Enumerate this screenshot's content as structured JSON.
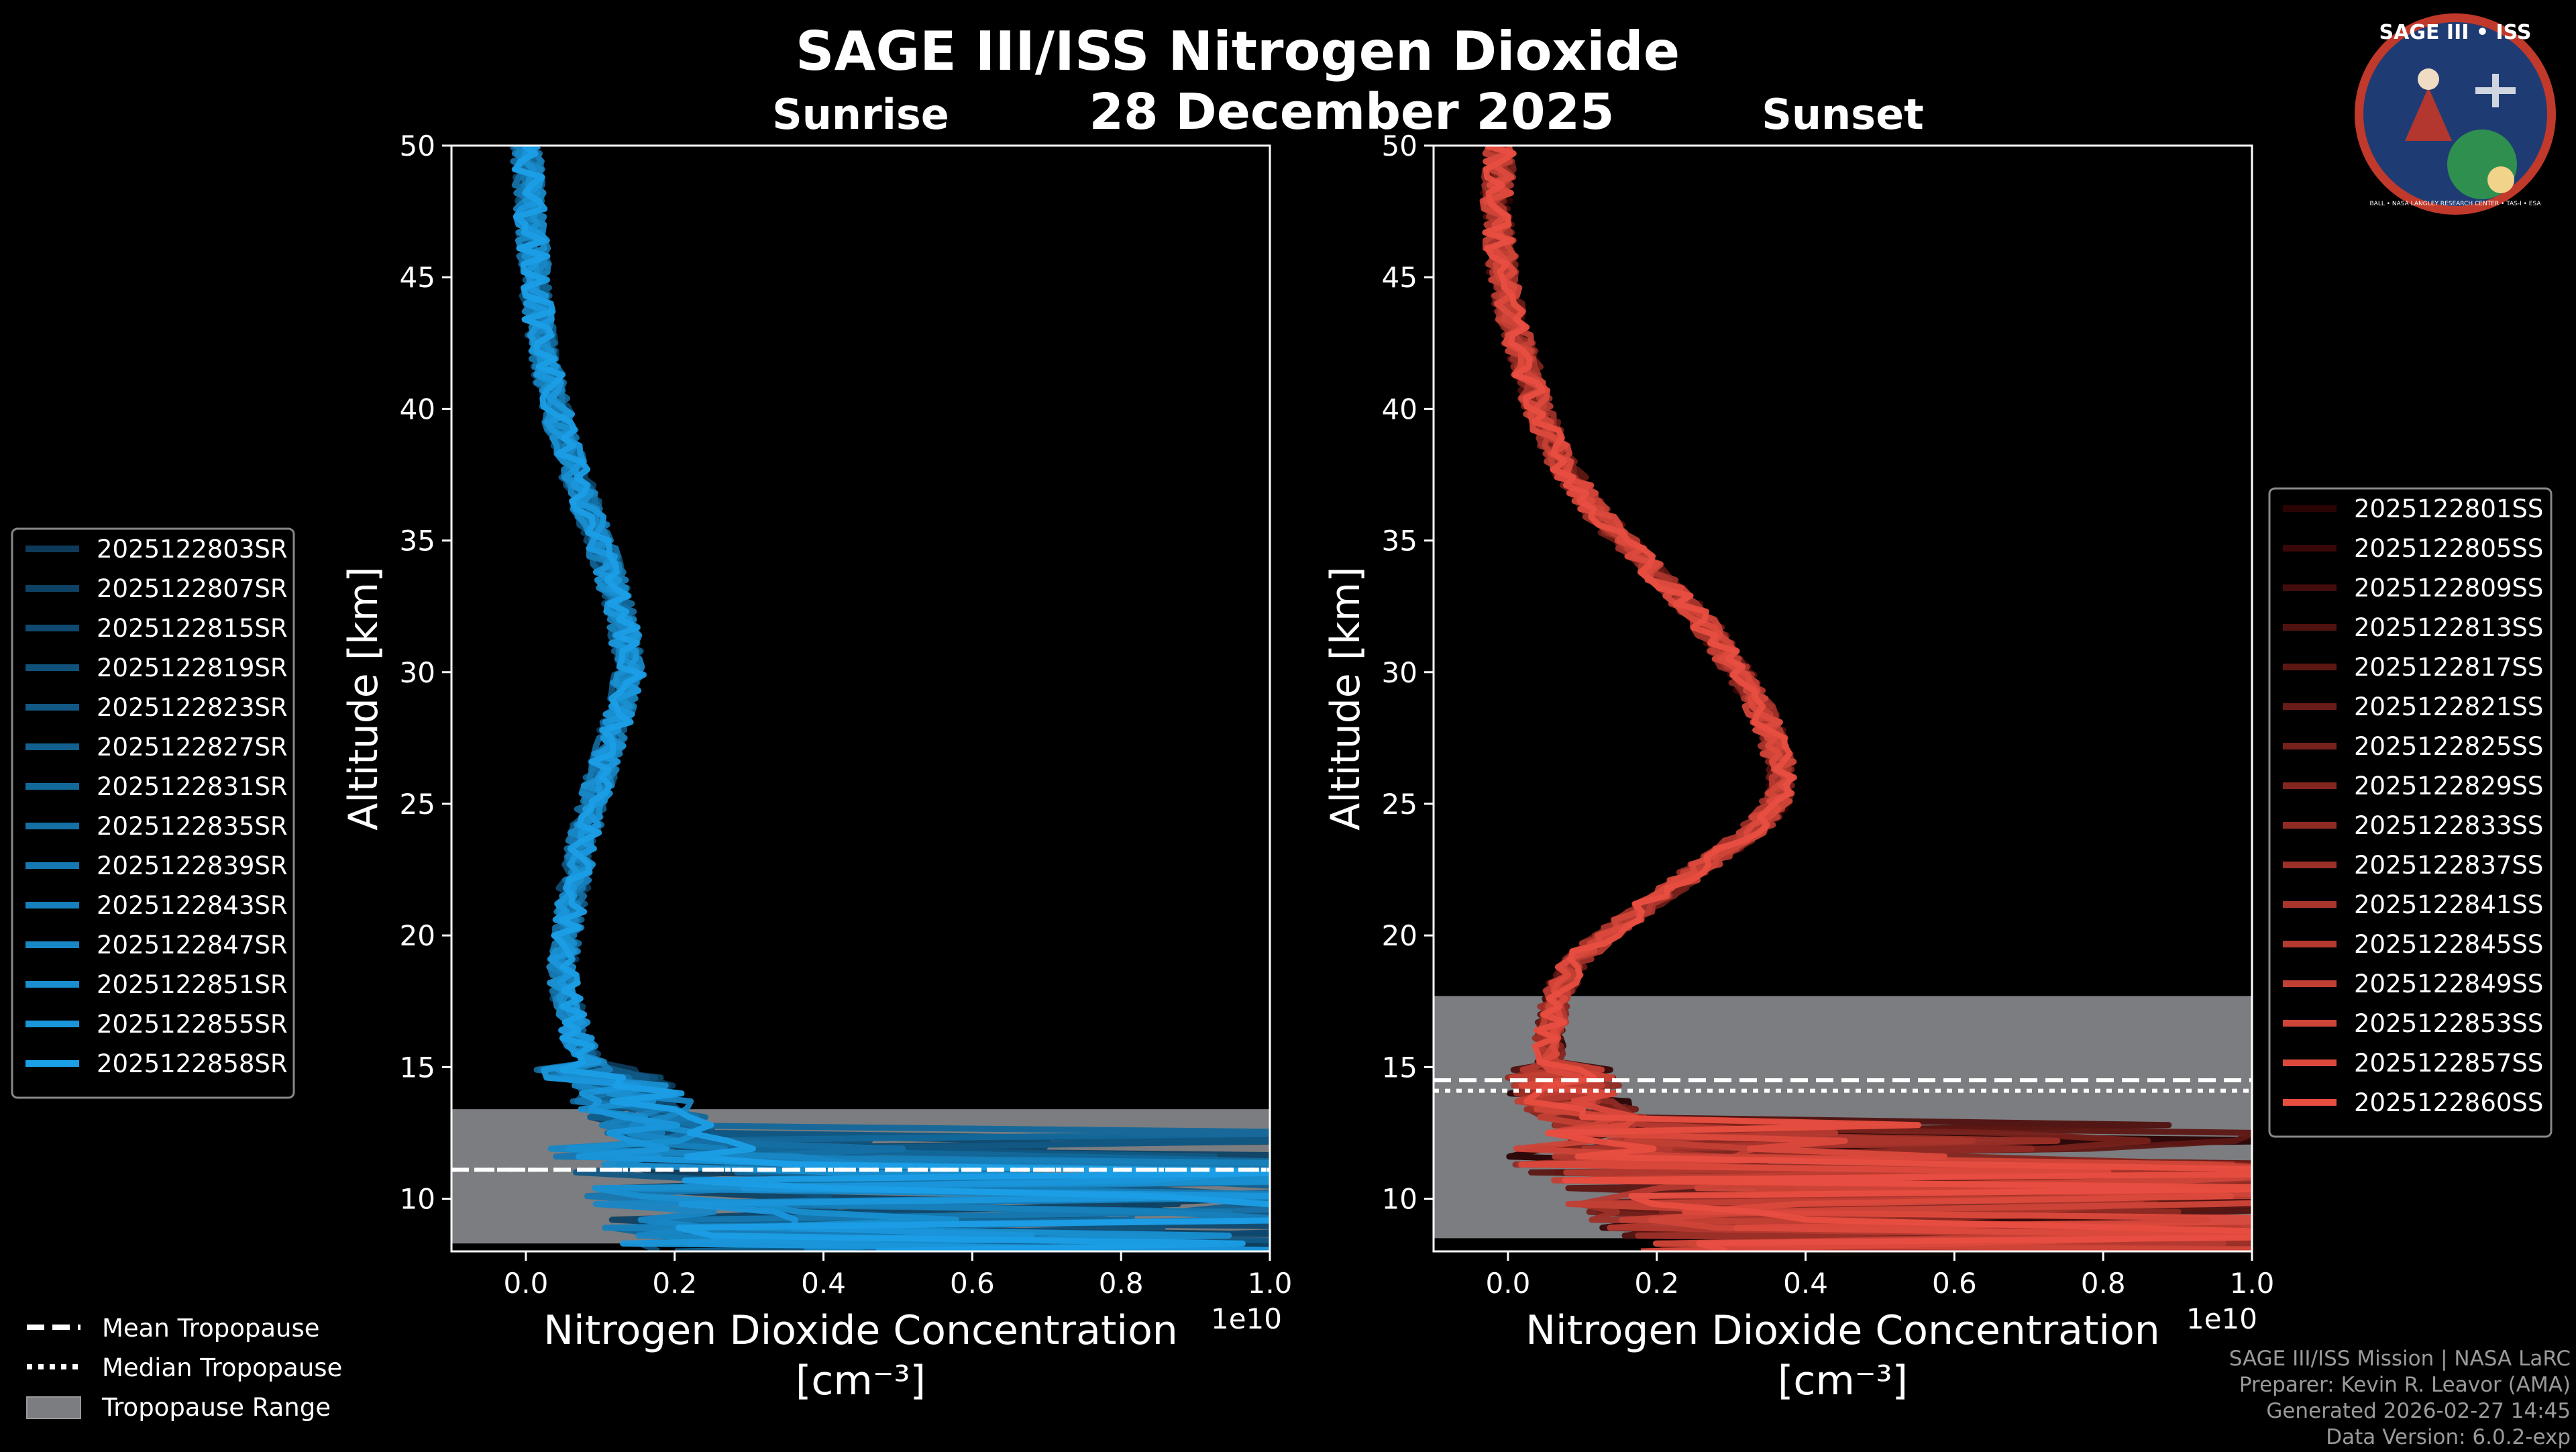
{
  "header": {
    "title": "SAGE III/ISS Nitrogen Dioxide",
    "date": "28 December 2025"
  },
  "logo": {
    "name": "SAGE III • ISS",
    "ring_text": "BALL • NASA LANGLEY RESEARCH CENTER • TAS-I • ESA"
  },
  "credits": {
    "line1": "SAGE III/ISS Mission | NASA LaRC",
    "line2": "Preparer: Kevin R. Leavor (AMA)",
    "line3": "Generated 2026-02-27 14:45",
    "line4": "Data Version: 6.0.2-exp"
  },
  "tropo_legend": {
    "mean": "Mean Tropopause",
    "median": "Median Tropopause",
    "range": "Tropopause Range"
  },
  "chart_data": [
    {
      "type": "line",
      "panel": "Sunrise",
      "title": "Sunrise",
      "xlabel": "Nitrogen Dioxide Concentration",
      "xunit": "[cm⁻³]",
      "xscale_label": "1e10",
      "ylabel": "Altitude [km]",
      "xlim": [
        -0.1,
        1.0
      ],
      "ylim": [
        8,
        50
      ],
      "xticks": [
        "0.0",
        "0.2",
        "0.4",
        "0.6",
        "0.8",
        "1.0"
      ],
      "yticks": [
        "10",
        "15",
        "20",
        "25",
        "30",
        "35",
        "40",
        "45",
        "50"
      ],
      "series_color_range": [
        "#0d3a59",
        "#1b9ee6"
      ],
      "series_names": [
        "2025122803SR",
        "2025122807SR",
        "2025122815SR",
        "2025122819SR",
        "2025122823SR",
        "2025122827SR",
        "2025122831SR",
        "2025122835SR",
        "2025122839SR",
        "2025122843SR",
        "2025122847SR",
        "2025122851SR",
        "2025122855SR",
        "2025122858SR"
      ],
      "mean_profile": {
        "alt": [
          8,
          9,
          10,
          11,
          12,
          13,
          14,
          15,
          16,
          17,
          18,
          19,
          20,
          22,
          24,
          26,
          28,
          30,
          32,
          34,
          36,
          38,
          40,
          42,
          44,
          46,
          48,
          50
        ],
        "val": [
          0.3,
          0.28,
          0.26,
          0.24,
          0.2,
          0.17,
          0.13,
          0.09,
          0.07,
          0.06,
          0.05,
          0.05,
          0.055,
          0.065,
          0.08,
          0.1,
          0.12,
          0.14,
          0.13,
          0.11,
          0.085,
          0.06,
          0.04,
          0.025,
          0.015,
          0.01,
          0.005,
          0.0
        ]
      },
      "tropopause": {
        "mean_km": 11.1,
        "median_km": 11.1,
        "range_km": [
          8.3,
          13.4
        ]
      },
      "legend_location": "left"
    },
    {
      "type": "line",
      "panel": "Sunset",
      "title": "Sunset",
      "xlabel": "Nitrogen Dioxide Concentration",
      "xunit": "[cm⁻³]",
      "xscale_label": "1e10",
      "ylabel": "Altitude [km]",
      "xlim": [
        -0.1,
        1.0
      ],
      "ylim": [
        8,
        50
      ],
      "xticks": [
        "0.0",
        "0.2",
        "0.4",
        "0.6",
        "0.8",
        "1.0"
      ],
      "yticks": [
        "10",
        "15",
        "20",
        "25",
        "30",
        "35",
        "40",
        "45",
        "50"
      ],
      "series_color_range": [
        "#2a0303",
        "#e84e40"
      ],
      "series_names": [
        "2025122801SS",
        "2025122805SS",
        "2025122809SS",
        "2025122813SS",
        "2025122817SS",
        "2025122821SS",
        "2025122825SS",
        "2025122829SS",
        "2025122833SS",
        "2025122837SS",
        "2025122841SS",
        "2025122845SS",
        "2025122849SS",
        "2025122853SS",
        "2025122857SS",
        "2025122860SS"
      ],
      "mean_profile": {
        "alt": [
          8,
          9,
          10,
          11,
          12,
          13,
          14,
          15,
          16,
          17,
          18,
          19,
          20,
          21,
          22,
          23,
          24,
          25,
          26,
          27,
          28,
          30,
          32,
          34,
          36,
          38,
          40,
          42,
          44,
          46,
          48,
          50
        ],
        "val": [
          0.35,
          0.3,
          0.25,
          0.2,
          0.15,
          0.11,
          0.08,
          0.06,
          0.055,
          0.06,
          0.07,
          0.09,
          0.13,
          0.18,
          0.23,
          0.28,
          0.33,
          0.36,
          0.37,
          0.36,
          0.35,
          0.31,
          0.26,
          0.19,
          0.12,
          0.07,
          0.04,
          0.02,
          0.0,
          -0.01,
          -0.015,
          -0.01
        ]
      },
      "tropopause": {
        "mean_km": 14.5,
        "median_km": 14.1,
        "range_km": [
          8.5,
          17.7
        ]
      },
      "legend_location": "right"
    }
  ]
}
